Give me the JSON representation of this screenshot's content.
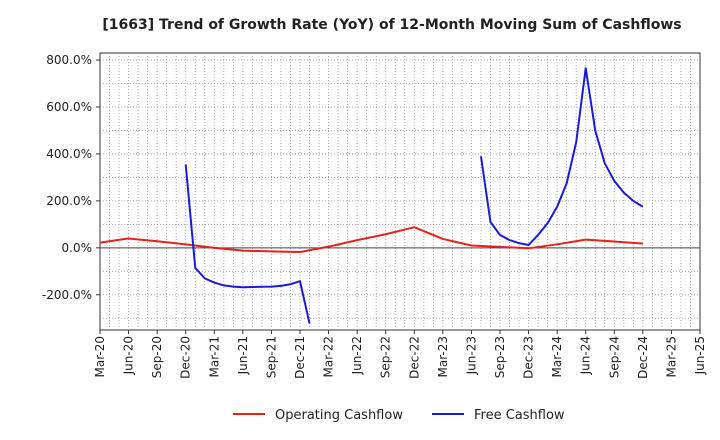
{
  "chart_data": {
    "type": "line",
    "title": "[1663]  Trend of Growth Rate (YoY) of 12-Month Moving Sum of Cashflows",
    "ylim": [
      -350,
      830
    ],
    "y_ticks": [
      800,
      600,
      400,
      200,
      0,
      -200
    ],
    "y_tick_labels": [
      "800.0%",
      "600.0%",
      "400.0%",
      "200.0%",
      "0.0%",
      "-200.0%"
    ],
    "x_tick_labels": [
      "Mar-20",
      "Jun-20",
      "Sep-20",
      "Dec-20",
      "Mar-21",
      "Jun-21",
      "Sep-21",
      "Dec-21",
      "Mar-22",
      "Jun-22",
      "Sep-22",
      "Dec-22",
      "Mar-23",
      "Jun-23",
      "Sep-23",
      "Dec-23",
      "Mar-24",
      "Jun-24",
      "Sep-24",
      "Dec-24",
      "Mar-25",
      "Jun-25"
    ],
    "grid": true,
    "legend_position": "bottom",
    "series": [
      {
        "name": "Operating Cashflow",
        "color": "#e8201a",
        "points": [
          [
            "Mar-20",
            22
          ],
          [
            "Jun-20",
            40
          ],
          [
            "Sep-20",
            28
          ],
          [
            "Dec-20",
            15
          ],
          [
            "Mar-21",
            0
          ],
          [
            "Jun-21",
            -12
          ],
          [
            "Sep-21",
            -15
          ],
          [
            "Dec-21",
            -18
          ],
          [
            "Mar-22",
            5
          ],
          [
            "Jun-22",
            33
          ],
          [
            "Sep-22",
            58
          ],
          [
            "Dec-22",
            88
          ],
          [
            "Mar-23",
            38
          ],
          [
            "Jun-23",
            10
          ],
          [
            "Sep-23",
            4
          ],
          [
            "Dec-23",
            -2
          ],
          [
            "Mar-24",
            15
          ],
          [
            "Jun-24",
            35
          ],
          [
            "Sep-24",
            27
          ],
          [
            "Dec-24",
            18
          ]
        ]
      },
      {
        "name": "Free Cashflow",
        "color": "#1a1adb",
        "segments": [
          [
            [
              "Dec-20",
              355
            ],
            [
              "Jan-21",
              -85
            ],
            [
              "Feb-21",
              -130
            ],
            [
              "Mar-21",
              -148
            ],
            [
              "Apr-21",
              -160
            ],
            [
              "May-21",
              -165
            ],
            [
              "Jun-21",
              -168
            ],
            [
              "Jul-21",
              -167
            ],
            [
              "Aug-21",
              -166
            ],
            [
              "Sep-21",
              -165
            ],
            [
              "Oct-21",
              -162
            ],
            [
              "Nov-21",
              -155
            ],
            [
              "Dec-21",
              -142
            ],
            [
              "Jan-22",
              -322
            ]
          ],
          [
            [
              "Jul-23",
              390
            ],
            [
              "Aug-23",
              110
            ],
            [
              "Sep-23",
              55
            ],
            [
              "Oct-23",
              33
            ],
            [
              "Nov-23",
              20
            ],
            [
              "Dec-23",
              12
            ],
            [
              "Jan-24",
              55
            ],
            [
              "Feb-24",
              105
            ],
            [
              "Mar-24",
              175
            ],
            [
              "Apr-24",
              275
            ],
            [
              "May-24",
              450
            ],
            [
              "Jun-24",
              765
            ],
            [
              "Jul-24",
              500
            ],
            [
              "Aug-24",
              360
            ],
            [
              "Sep-24",
              285
            ],
            [
              "Oct-24",
              235
            ],
            [
              "Nov-24",
              200
            ],
            [
              "Dec-24",
              175
            ]
          ]
        ]
      }
    ]
  }
}
